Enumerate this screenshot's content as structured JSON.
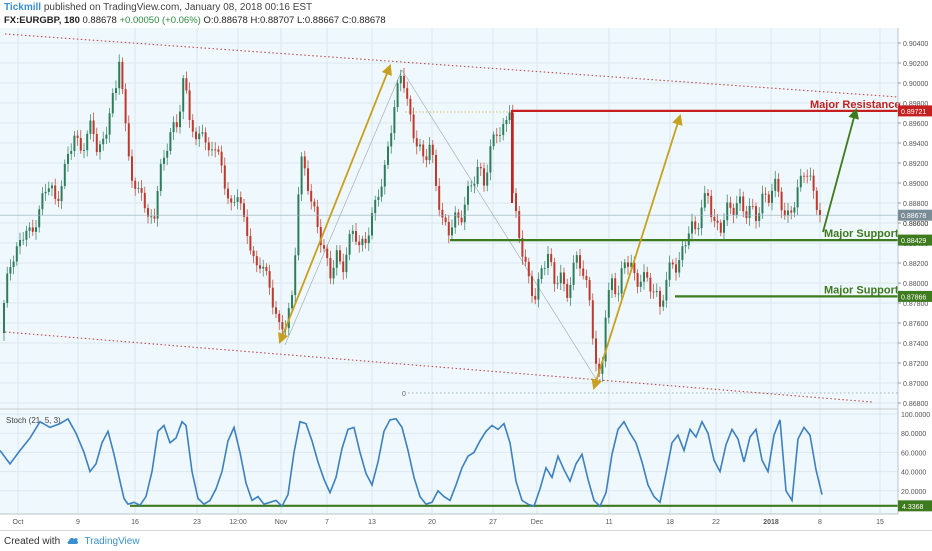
{
  "header": {
    "brand": "Tickmill",
    "published": "published on TradingView.com, January 08, 2018 00:16 EST",
    "symbol": "FX:EURGBP, 180",
    "price": "0.88678",
    "change": "+0.00050 (+0.06%)",
    "ohlc": "O:0.88678 H:0.88707 L:0.88667 C:0.88678"
  },
  "footer": {
    "created_with": "Created with",
    "logo_icon": "tradingview-cloud-icon",
    "brand": "TradingView"
  },
  "colors": {
    "background": "#eef8fd",
    "candle_up": "#2e7d5b",
    "candle_down": "#c0392b",
    "resistance": "#c51f1f",
    "support": "#3e7a1e",
    "arrow_gold": "#c8a020",
    "arrow_green": "#3e7a1e",
    "channel": "#c04848",
    "stoch": "#3c80c0"
  },
  "chart_data": {
    "type": "candlestick",
    "instrument": "FX:EURGBP",
    "interval": "180",
    "ylim": [
      0.8675,
      0.9055
    ],
    "y_ticks": [
      "0.90400",
      "0.90200",
      "0.90000",
      "0.89800",
      "0.89600",
      "0.89400",
      "0.89200",
      "0.89000",
      "0.88800",
      "0.88600",
      "0.88400",
      "0.88200",
      "0.88000",
      "0.87800",
      "0.87600",
      "0.87400",
      "0.87200",
      "0.87000",
      "0.86800"
    ],
    "x_ticks": [
      "Oct",
      "9",
      "16",
      "23",
      "12:00",
      "Nov",
      "7",
      "13",
      "20",
      "27",
      "Dec",
      "11",
      "18",
      "22",
      "2018",
      "8",
      "15"
    ],
    "last_price": "0.88678",
    "axis_price_label": "0.88600",
    "levels": [
      {
        "label": "Major Resistance",
        "value": 0.89721,
        "price_label": "0.89721",
        "kind": "resistance"
      },
      {
        "label": "Major Support",
        "value": 0.88429,
        "price_label": "0.88429",
        "kind": "support"
      },
      {
        "label": "Major Support",
        "value": 0.87866,
        "price_label": "0.87866",
        "kind": "support"
      }
    ],
    "zero_label": "0",
    "price_series": [
      [
        0,
        0.875
      ],
      [
        6,
        0.8795
      ],
      [
        12,
        0.882
      ],
      [
        20,
        0.8835
      ],
      [
        26,
        0.886
      ],
      [
        32,
        0.885
      ],
      [
        38,
        0.8875
      ],
      [
        44,
        0.8885
      ],
      [
        50,
        0.89
      ],
      [
        56,
        0.887
      ],
      [
        62,
        0.8905
      ],
      [
        68,
        0.893
      ],
      [
        74,
        0.8955
      ],
      [
        80,
        0.893
      ],
      [
        86,
        0.894
      ],
      [
        92,
        0.8955
      ],
      [
        98,
        0.893
      ],
      [
        104,
        0.8945
      ],
      [
        110,
        0.898
      ],
      [
        116,
        0.8995
      ],
      [
        120,
        0.9035
      ],
      [
        124,
        0.896
      ],
      [
        130,
        0.8915
      ],
      [
        136,
        0.8885
      ],
      [
        142,
        0.89
      ],
      [
        148,
        0.8865
      ],
      [
        154,
        0.887
      ],
      [
        160,
        0.8905
      ],
      [
        166,
        0.893
      ],
      [
        172,
        0.895
      ],
      [
        178,
        0.8965
      ],
      [
        184,
        0.901
      ],
      [
        190,
        0.897
      ],
      [
        196,
        0.8935
      ],
      [
        202,
        0.8955
      ],
      [
        208,
        0.892
      ],
      [
        214,
        0.8945
      ],
      [
        220,
        0.8925
      ],
      [
        226,
        0.89
      ],
      [
        232,
        0.887
      ],
      [
        238,
        0.889
      ],
      [
        244,
        0.8855
      ],
      [
        250,
        0.884
      ],
      [
        256,
        0.8815
      ],
      [
        262,
        0.883
      ],
      [
        268,
        0.88
      ],
      [
        274,
        0.8775
      ],
      [
        280,
        0.8745
      ],
      [
        286,
        0.876
      ],
      [
        292,
        0.8785
      ],
      [
        296,
        0.885
      ],
      [
        300,
        0.893
      ],
      [
        306,
        0.891
      ],
      [
        312,
        0.8875
      ],
      [
        318,
        0.885
      ],
      [
        324,
        0.883
      ],
      [
        330,
        0.881
      ],
      [
        336,
        0.8835
      ],
      [
        342,
        0.8815
      ],
      [
        348,
        0.8835
      ],
      [
        354,
        0.885
      ],
      [
        360,
        0.883
      ],
      [
        366,
        0.8845
      ],
      [
        372,
        0.887
      ],
      [
        378,
        0.8895
      ],
      [
        384,
        0.8905
      ],
      [
        390,
        0.8945
      ],
      [
        396,
        0.898
      ],
      [
        402,
        0.9015
      ],
      [
        406,
        0.899
      ],
      [
        412,
        0.896
      ],
      [
        418,
        0.894
      ],
      [
        424,
        0.892
      ],
      [
        430,
        0.8935
      ],
      [
        436,
        0.8895
      ],
      [
        442,
        0.8865
      ],
      [
        448,
        0.8855
      ],
      [
        454,
        0.887
      ],
      [
        460,
        0.886
      ],
      [
        466,
        0.888
      ],
      [
        472,
        0.8895
      ],
      [
        478,
        0.8915
      ],
      [
        484,
        0.8905
      ],
      [
        490,
        0.8935
      ],
      [
        496,
        0.8955
      ],
      [
        502,
        0.8945
      ],
      [
        506,
        0.8955
      ],
      [
        510,
        0.8975
      ],
      [
        513,
        0.888
      ],
      [
        518,
        0.8855
      ],
      [
        524,
        0.883
      ],
      [
        530,
        0.88
      ],
      [
        536,
        0.8785
      ],
      [
        542,
        0.881
      ],
      [
        548,
        0.8825
      ],
      [
        554,
        0.88
      ],
      [
        560,
        0.8815
      ],
      [
        566,
        0.879
      ],
      [
        572,
        0.881
      ],
      [
        578,
        0.8825
      ],
      [
        584,
        0.88
      ],
      [
        590,
        0.878
      ],
      [
        594,
        0.874
      ],
      [
        598,
        0.87
      ],
      [
        602,
        0.8725
      ],
      [
        606,
        0.878
      ],
      [
        612,
        0.88
      ],
      [
        618,
        0.8785
      ],
      [
        624,
        0.8815
      ],
      [
        630,
        0.8825
      ],
      [
        636,
        0.88
      ],
      [
        642,
        0.8815
      ],
      [
        648,
        0.88
      ],
      [
        654,
        0.879
      ],
      [
        660,
        0.877
      ],
      [
        666,
        0.88
      ],
      [
        672,
        0.8825
      ],
      [
        678,
        0.882
      ],
      [
        684,
        0.884
      ],
      [
        690,
        0.8855
      ],
      [
        696,
        0.8845
      ],
      [
        702,
        0.8875
      ],
      [
        708,
        0.889
      ],
      [
        714,
        0.8865
      ],
      [
        720,
        0.8855
      ],
      [
        726,
        0.8875
      ],
      [
        732,
        0.8865
      ],
      [
        738,
        0.888
      ],
      [
        744,
        0.887
      ],
      [
        750,
        0.888
      ],
      [
        756,
        0.887
      ],
      [
        762,
        0.8885
      ],
      [
        768,
        0.888
      ],
      [
        774,
        0.8895
      ],
      [
        780,
        0.8885
      ],
      [
        786,
        0.8865
      ],
      [
        792,
        0.888
      ],
      [
        798,
        0.8895
      ],
      [
        804,
        0.891
      ],
      [
        808,
        0.8905
      ],
      [
        812,
        0.889
      ],
      [
        816,
        0.888
      ],
      [
        820,
        0.8868
      ]
    ],
    "stoch_label": "Stoch (21, 5, 3)",
    "stoch_ylim": [
      0,
      100
    ],
    "stoch_ticks": [
      "100.0000",
      "80.0000",
      "60.0000",
      "40.0000",
      "20.0000"
    ],
    "stoch_last": "4.3368",
    "stoch_series": [
      [
        0,
        62
      ],
      [
        10,
        48
      ],
      [
        20,
        62
      ],
      [
        30,
        75
      ],
      [
        40,
        92
      ],
      [
        50,
        86
      ],
      [
        60,
        90
      ],
      [
        68,
        95
      ],
      [
        76,
        80
      ],
      [
        84,
        60
      ],
      [
        90,
        40
      ],
      [
        96,
        48
      ],
      [
        102,
        70
      ],
      [
        108,
        82
      ],
      [
        114,
        58
      ],
      [
        120,
        30
      ],
      [
        124,
        12
      ],
      [
        128,
        6
      ],
      [
        134,
        8
      ],
      [
        140,
        5
      ],
      [
        146,
        14
      ],
      [
        152,
        40
      ],
      [
        158,
        82
      ],
      [
        164,
        88
      ],
      [
        170,
        70
      ],
      [
        176,
        75
      ],
      [
        182,
        92
      ],
      [
        186,
        88
      ],
      [
        192,
        40
      ],
      [
        198,
        12
      ],
      [
        204,
        6
      ],
      [
        210,
        10
      ],
      [
        216,
        22
      ],
      [
        222,
        40
      ],
      [
        228,
        72
      ],
      [
        234,
        86
      ],
      [
        240,
        60
      ],
      [
        246,
        28
      ],
      [
        252,
        10
      ],
      [
        258,
        14
      ],
      [
        264,
        6
      ],
      [
        270,
        8
      ],
      [
        276,
        10
      ],
      [
        282,
        4
      ],
      [
        288,
        16
      ],
      [
        294,
        60
      ],
      [
        300,
        92
      ],
      [
        306,
        90
      ],
      [
        312,
        72
      ],
      [
        318,
        50
      ],
      [
        324,
        32
      ],
      [
        330,
        18
      ],
      [
        336,
        34
      ],
      [
        342,
        64
      ],
      [
        348,
        84
      ],
      [
        354,
        86
      ],
      [
        360,
        60
      ],
      [
        366,
        38
      ],
      [
        372,
        26
      ],
      [
        378,
        50
      ],
      [
        384,
        82
      ],
      [
        390,
        94
      ],
      [
        396,
        95
      ],
      [
        402,
        86
      ],
      [
        408,
        62
      ],
      [
        414,
        34
      ],
      [
        420,
        14
      ],
      [
        426,
        6
      ],
      [
        432,
        8
      ],
      [
        438,
        20
      ],
      [
        444,
        14
      ],
      [
        450,
        10
      ],
      [
        456,
        26
      ],
      [
        462,
        44
      ],
      [
        468,
        56
      ],
      [
        474,
        60
      ],
      [
        480,
        72
      ],
      [
        486,
        82
      ],
      [
        492,
        88
      ],
      [
        498,
        84
      ],
      [
        504,
        90
      ],
      [
        510,
        70
      ],
      [
        516,
        30
      ],
      [
        522,
        10
      ],
      [
        528,
        6
      ],
      [
        534,
        4
      ],
      [
        540,
        22
      ],
      [
        546,
        44
      ],
      [
        552,
        34
      ],
      [
        558,
        56
      ],
      [
        564,
        42
      ],
      [
        570,
        30
      ],
      [
        576,
        48
      ],
      [
        582,
        58
      ],
      [
        588,
        32
      ],
      [
        594,
        10
      ],
      [
        600,
        4
      ],
      [
        606,
        18
      ],
      [
        612,
        58
      ],
      [
        618,
        84
      ],
      [
        624,
        92
      ],
      [
        630,
        80
      ],
      [
        636,
        70
      ],
      [
        642,
        50
      ],
      [
        648,
        26
      ],
      [
        654,
        14
      ],
      [
        660,
        8
      ],
      [
        666,
        38
      ],
      [
        672,
        70
      ],
      [
        678,
        78
      ],
      [
        684,
        62
      ],
      [
        690,
        84
      ],
      [
        696,
        76
      ],
      [
        702,
        92
      ],
      [
        708,
        80
      ],
      [
        714,
        52
      ],
      [
        720,
        40
      ],
      [
        726,
        68
      ],
      [
        732,
        84
      ],
      [
        738,
        74
      ],
      [
        744,
        50
      ],
      [
        750,
        76
      ],
      [
        756,
        84
      ],
      [
        762,
        52
      ],
      [
        768,
        40
      ],
      [
        774,
        78
      ],
      [
        780,
        94
      ],
      [
        786,
        20
      ],
      [
        792,
        10
      ],
      [
        798,
        74
      ],
      [
        804,
        86
      ],
      [
        810,
        78
      ],
      [
        816,
        42
      ],
      [
        822,
        16
      ]
    ]
  }
}
